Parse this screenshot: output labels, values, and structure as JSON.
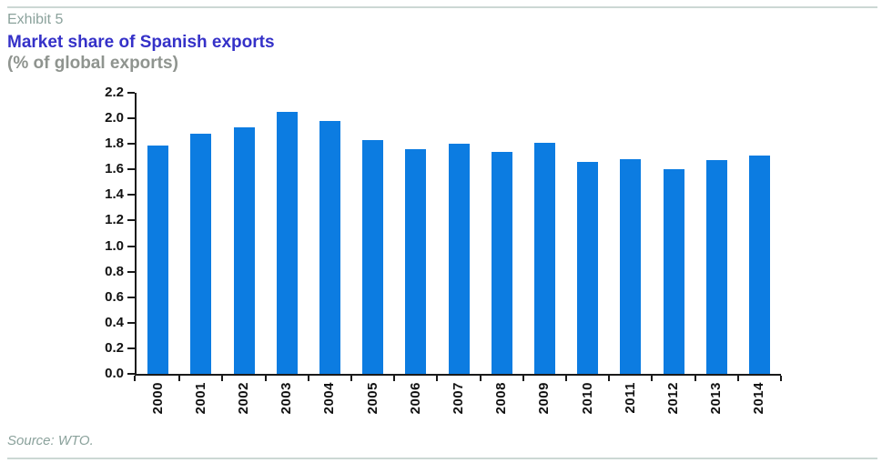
{
  "header": {
    "exhibit": "Exhibit 5"
  },
  "chart_data": {
    "type": "bar",
    "title": "Market share of Spanish exports",
    "subtitle": "(% of global exports)",
    "categories": [
      "2000",
      "2001",
      "2002",
      "2003",
      "2004",
      "2005",
      "2006",
      "2007",
      "2008",
      "2009",
      "2010",
      "2011",
      "2012",
      "2013",
      "2014"
    ],
    "values": [
      1.79,
      1.88,
      1.93,
      2.05,
      1.98,
      1.83,
      1.76,
      1.8,
      1.74,
      1.81,
      1.66,
      1.68,
      1.6,
      1.67,
      1.71
    ],
    "xlabel": "",
    "ylabel": "",
    "ylim": [
      0.0,
      2.2
    ],
    "ytick_step": 0.2,
    "grid": false,
    "legend": null,
    "bar_color": "#0c7ce1"
  },
  "footer": {
    "source": "Source: WTO."
  },
  "colors": {
    "title": "#3531c8",
    "subtitle": "#8f948f",
    "muted_text": "#8ba29c",
    "axis": "#1a1a1a",
    "divider": "#ccd8d4",
    "bar": "#0c7ce1"
  }
}
